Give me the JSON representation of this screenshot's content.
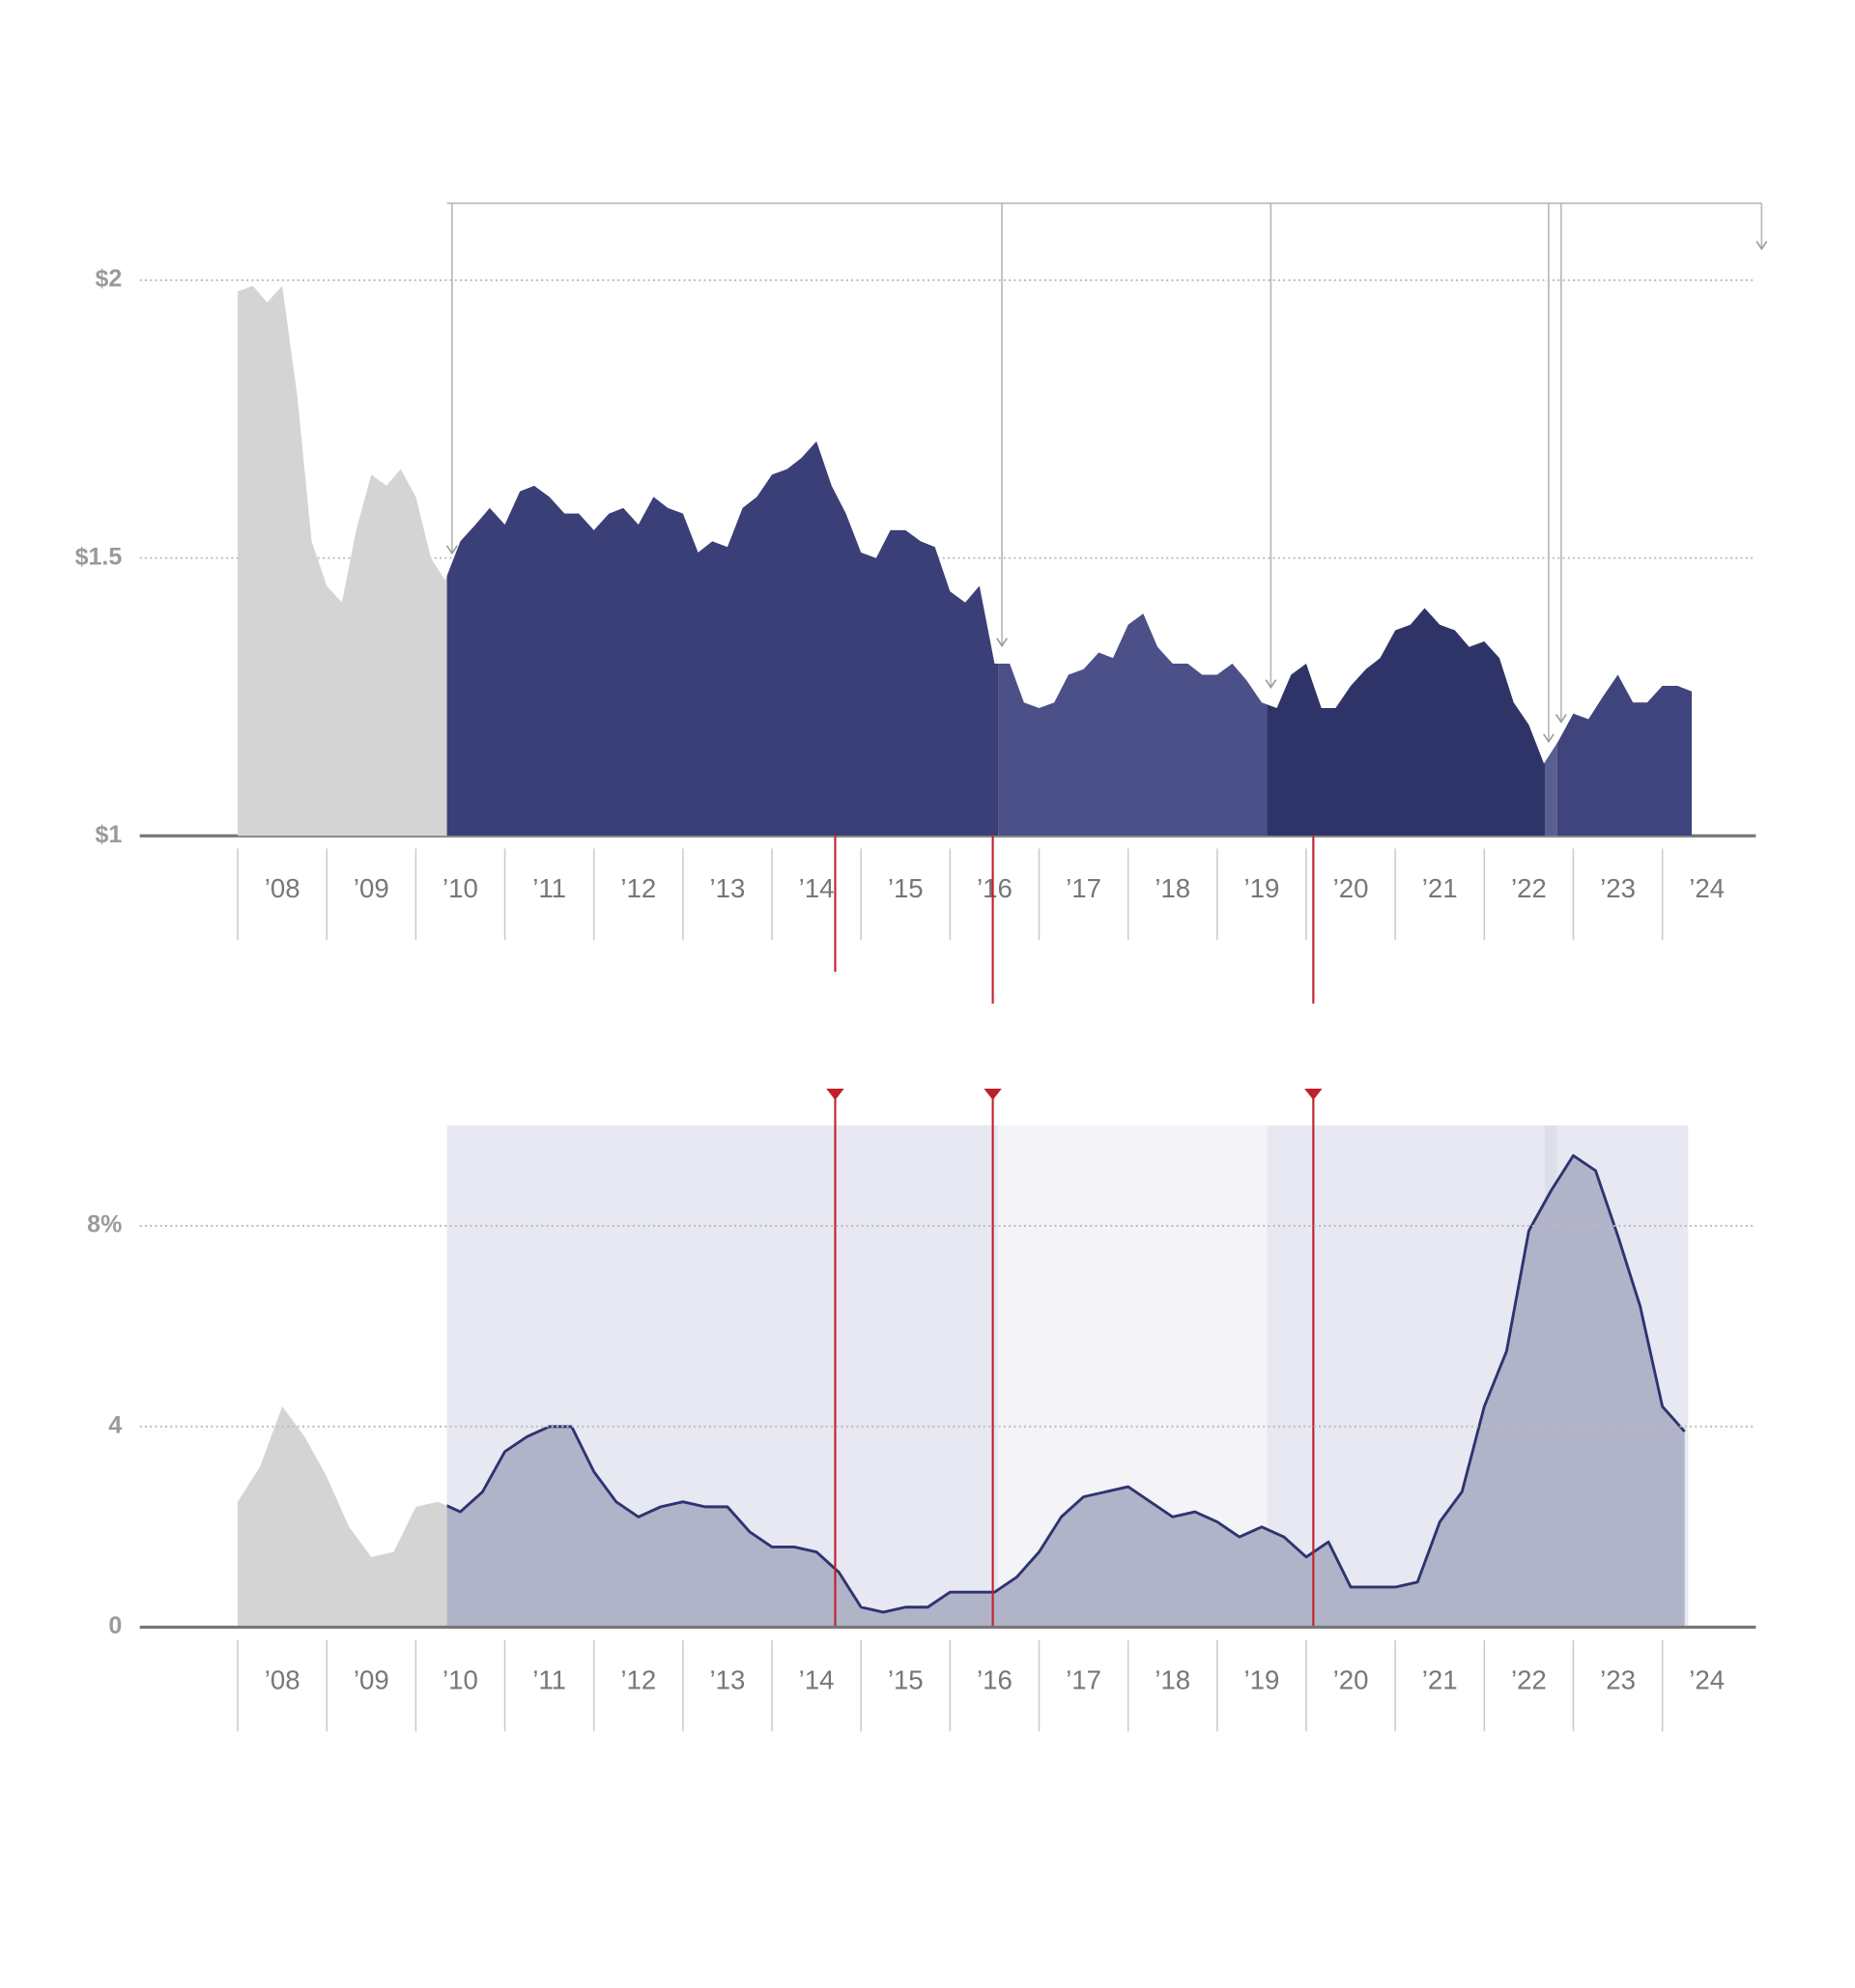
{
  "chart_data": [
    {
      "type": "area",
      "x": [
        2008,
        2008.17,
        2008.33,
        2008.5,
        2008.67,
        2008.83,
        2009,
        2009.17,
        2009.33,
        2009.5,
        2009.67,
        2009.83,
        2010,
        2010.17,
        2010.33,
        2010.5,
        2010.67,
        2010.83,
        2011,
        2011.17,
        2011.33,
        2011.5,
        2011.67,
        2011.83,
        2012,
        2012.17,
        2012.33,
        2012.5,
        2012.67,
        2012.83,
        2013,
        2013.17,
        2013.33,
        2013.5,
        2013.67,
        2013.83,
        2014,
        2014.17,
        2014.33,
        2014.5,
        2014.67,
        2014.83,
        2015,
        2015.17,
        2015.33,
        2015.5,
        2015.67,
        2015.83,
        2016,
        2016.17,
        2016.33,
        2016.5,
        2016.67,
        2016.83,
        2017,
        2017.17,
        2017.33,
        2017.5,
        2017.67,
        2017.83,
        2018,
        2018.17,
        2018.33,
        2018.5,
        2018.67,
        2018.83,
        2019,
        2019.17,
        2019.33,
        2019.5,
        2019.67,
        2019.83,
        2020,
        2020.17,
        2020.33,
        2020.5,
        2020.67,
        2020.83,
        2021,
        2021.17,
        2021.33,
        2021.5,
        2021.67,
        2021.83,
        2022,
        2022.17,
        2022.33,
        2022.5,
        2022.67,
        2022.83,
        2023,
        2023.17,
        2023.33,
        2023.5,
        2023.67,
        2023.83,
        2024,
        2024.17,
        2024.33
      ],
      "values": [
        1.98,
        1.99,
        1.96,
        1.99,
        1.79,
        1.53,
        1.45,
        1.42,
        1.55,
        1.65,
        1.63,
        1.66,
        1.61,
        1.5,
        1.46,
        1.53,
        1.56,
        1.59,
        1.56,
        1.62,
        1.63,
        1.61,
        1.58,
        1.58,
        1.55,
        1.58,
        1.59,
        1.56,
        1.61,
        1.59,
        1.58,
        1.51,
        1.53,
        1.52,
        1.59,
        1.61,
        1.65,
        1.66,
        1.68,
        1.71,
        1.63,
        1.58,
        1.51,
        1.5,
        1.55,
        1.55,
        1.53,
        1.52,
        1.44,
        1.42,
        1.45,
        1.31,
        1.31,
        1.24,
        1.23,
        1.24,
        1.29,
        1.3,
        1.33,
        1.32,
        1.38,
        1.4,
        1.34,
        1.31,
        1.31,
        1.29,
        1.29,
        1.31,
        1.28,
        1.24,
        1.23,
        1.29,
        1.31,
        1.23,
        1.23,
        1.27,
        1.3,
        1.32,
        1.37,
        1.38,
        1.41,
        1.38,
        1.37,
        1.34,
        1.35,
        1.32,
        1.24,
        1.2,
        1.13,
        1.17,
        1.22,
        1.21,
        1.25,
        1.29,
        1.24,
        1.24,
        1.27,
        1.27,
        1.26
      ],
      "color": "#d4d4d4",
      "periods": [
        {
          "start": 2010.35,
          "end": 2016.54,
          "color": "#3a3f78"
        },
        {
          "start": 2016.54,
          "end": 2019.56,
          "color": "#4b5088"
        },
        {
          "start": 2019.56,
          "end": 2022.68,
          "color": "#2f3468"
        },
        {
          "start": 2022.68,
          "end": 2022.82,
          "color": "#5a5f92"
        },
        {
          "start": 2022.82,
          "end": 2024.43,
          "color": "#3f447c"
        }
      ],
      "xlim": [
        2006.9,
        2025.05
      ],
      "ylim": [
        1,
        2.15
      ],
      "xticks": [
        {
          "value": 2008,
          "label": "’08"
        },
        {
          "value": 2009,
          "label": "’09"
        },
        {
          "value": 2010,
          "label": "’10"
        },
        {
          "value": 2011,
          "label": "’11"
        },
        {
          "value": 2012,
          "label": "’12"
        },
        {
          "value": 2013,
          "label": "’13"
        },
        {
          "value": 2014,
          "label": "’14"
        },
        {
          "value": 2015,
          "label": "’15"
        },
        {
          "value": 2016,
          "label": "’16"
        },
        {
          "value": 2017,
          "label": "’17"
        },
        {
          "value": 2018,
          "label": "’18"
        },
        {
          "value": 2019,
          "label": "’19"
        },
        {
          "value": 2020,
          "label": "’20"
        },
        {
          "value": 2021,
          "label": "’21"
        },
        {
          "value": 2022,
          "label": "’22"
        },
        {
          "value": 2023,
          "label": "’23"
        },
        {
          "value": 2024,
          "label": "’24"
        }
      ],
      "yticks": [
        {
          "value": 1,
          "label": "$1"
        },
        {
          "value": 1.5,
          "label": "$1.5"
        },
        {
          "value": 2,
          "label": "$2"
        }
      ],
      "grid": true
    },
    {
      "type": "area-line",
      "x": [
        2008,
        2008.25,
        2008.5,
        2008.75,
        2009,
        2009.25,
        2009.5,
        2009.75,
        2010,
        2010.25,
        2010.5,
        2010.75,
        2011,
        2011.25,
        2011.5,
        2011.75,
        2012,
        2012.25,
        2012.5,
        2012.75,
        2013,
        2013.25,
        2013.5,
        2013.75,
        2014,
        2014.25,
        2014.5,
        2014.75,
        2015,
        2015.25,
        2015.5,
        2015.75,
        2016,
        2016.25,
        2016.5,
        2016.75,
        2017,
        2017.25,
        2017.5,
        2017.75,
        2018,
        2018.25,
        2018.5,
        2018.75,
        2019,
        2019.25,
        2019.5,
        2019.75,
        2020,
        2020.25,
        2020.5,
        2020.75,
        2021,
        2021.25,
        2021.5,
        2021.75,
        2022,
        2022.25,
        2022.5,
        2022.75,
        2023,
        2023.25,
        2023.5,
        2023.75,
        2024,
        2024.25
      ],
      "values": [
        2.5,
        3.2,
        4.4,
        3.8,
        3.0,
        2.0,
        1.4,
        1.5,
        2.4,
        2.5,
        2.3,
        2.7,
        3.5,
        3.8,
        4.0,
        4.0,
        3.1,
        2.5,
        2.2,
        2.4,
        2.5,
        2.4,
        2.4,
        1.9,
        1.6,
        1.6,
        1.5,
        1.1,
        0.4,
        0.3,
        0.4,
        0.4,
        0.7,
        0.7,
        0.7,
        1.0,
        1.5,
        2.2,
        2.6,
        2.7,
        2.8,
        2.5,
        2.2,
        2.3,
        2.1,
        1.8,
        2.0,
        1.8,
        1.4,
        1.7,
        0.8,
        0.8,
        0.8,
        0.9,
        2.1,
        2.7,
        4.4,
        5.5,
        7.9,
        8.7,
        9.4,
        9.1,
        7.8,
        6.4,
        4.4,
        3.9
      ],
      "color": "#d4d4d4",
      "highlight_color": "#b1b3c8",
      "line_color": "#2e3470",
      "periods": [
        {
          "start": 2010.35,
          "end": 2016.54,
          "color": "#e8e8f2"
        },
        {
          "start": 2016.54,
          "end": 2019.56,
          "color": "#f3f3f8"
        },
        {
          "start": 2019.56,
          "end": 2022.68,
          "color": "#e8e8f2"
        },
        {
          "start": 2022.68,
          "end": 2022.82,
          "color": "#dedee9"
        },
        {
          "start": 2022.82,
          "end": 2024.29,
          "color": "#e8e8f2"
        }
      ],
      "events": [
        2014.71,
        2016.48,
        2020.08
      ],
      "event_color": "#c0202a",
      "xlim": [
        2006.9,
        2025.05
      ],
      "ylim": [
        0,
        10
      ],
      "xticks": [
        {
          "value": 2008,
          "label": "’08"
        },
        {
          "value": 2009,
          "label": "’09"
        },
        {
          "value": 2010,
          "label": "’10"
        },
        {
          "value": 2011,
          "label": "’11"
        },
        {
          "value": 2012,
          "label": "’12"
        },
        {
          "value": 2013,
          "label": "’13"
        },
        {
          "value": 2014,
          "label": "’14"
        },
        {
          "value": 2015,
          "label": "’15"
        },
        {
          "value": 2016,
          "label": "’16"
        },
        {
          "value": 2017,
          "label": "’17"
        },
        {
          "value": 2018,
          "label": "’18"
        },
        {
          "value": 2019,
          "label": "’19"
        },
        {
          "value": 2020,
          "label": "’20"
        },
        {
          "value": 2021,
          "label": "’21"
        },
        {
          "value": 2022,
          "label": "’22"
        },
        {
          "value": 2023,
          "label": "’23"
        },
        {
          "value": 2024,
          "label": "’24"
        }
      ],
      "yticks": [
        0,
        4,
        {
          "value": 8,
          "label": "8%"
        }
      ],
      "grid": true
    }
  ]
}
